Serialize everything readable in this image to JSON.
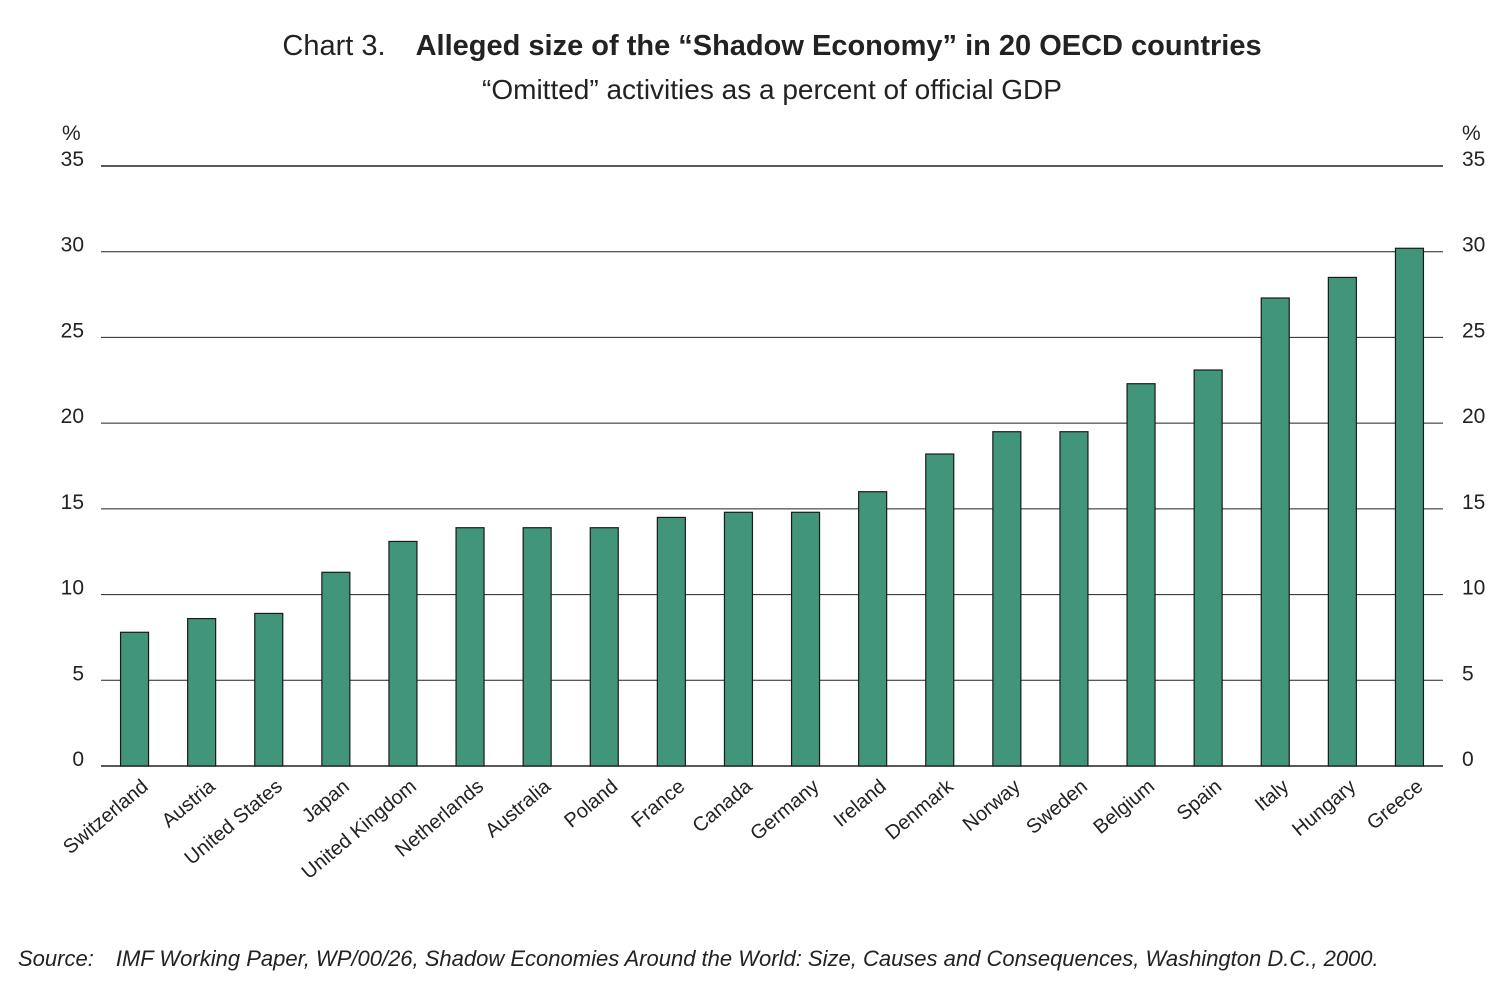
{
  "header": {
    "title_prefix": "Chart 3.",
    "title": "Alleged size of the “Shadow Economy” in 20 OECD countries",
    "subtitle": "“Omitted” activities as a percent of official GDP"
  },
  "source": {
    "label": "Source:",
    "text": "IMF Working Paper, WP/00/26, Shadow Economies Around the World: Size, Causes and Consequences, Washington D.C., 2000."
  },
  "colors": {
    "bar_fill": "#41957a",
    "bar_stroke": "#1a1a1a",
    "grid": "#222222",
    "text": "#222222"
  },
  "chart_data": {
    "type": "bar",
    "title": "Alleged size of the “Shadow Economy” in 20 OECD countries",
    "subtitle": "“Omitted” activities as a percent of official GDP",
    "ylabel": "%",
    "ylabel_right": "%",
    "ylim": [
      0,
      35
    ],
    "yticks": [
      0,
      5,
      10,
      15,
      20,
      25,
      30,
      35
    ],
    "grid": true,
    "categories": [
      "Switzerland",
      "Austria",
      "United States",
      "Japan",
      "United Kingdom",
      "Netherlands",
      "Australia",
      "Poland",
      "France",
      "Canada",
      "Germany",
      "Ireland",
      "Denmark",
      "Norway",
      "Sweden",
      "Belgium",
      "Spain",
      "Italy",
      "Hungary",
      "Greece"
    ],
    "values": [
      7.8,
      8.6,
      8.9,
      11.3,
      13.1,
      13.9,
      13.9,
      13.9,
      14.5,
      14.8,
      14.8,
      16.0,
      18.2,
      19.5,
      19.5,
      22.3,
      23.1,
      27.3,
      28.5,
      30.2
    ]
  }
}
